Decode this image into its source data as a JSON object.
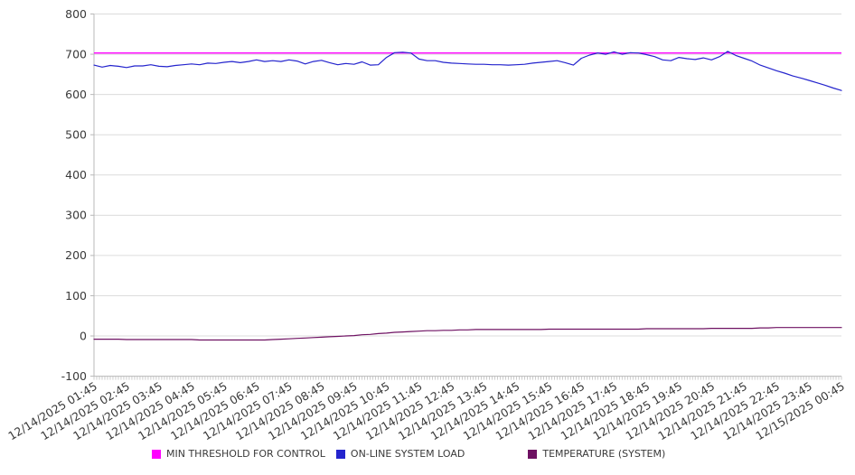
{
  "colors": {
    "background": "#ffffff",
    "grid": "#dcdcdc",
    "axis": "#b8b8b8",
    "tick_label": "#3a3a3a",
    "threshold": "#ff00ff",
    "load": "#2424cd",
    "temperature": "#6e1162"
  },
  "chart_data": {
    "type": "line",
    "title": "",
    "grid": "horizontal",
    "legend_position": "bottom",
    "x_axis": {
      "label_rotation_deg": -31,
      "minor_ticks": 277,
      "tick_labels": [
        "12/14/2025 01:45",
        "12/14/2025 02:45",
        "12/14/2025 03:45",
        "12/14/2025 04:45",
        "12/14/2025 05:45",
        "12/14/2025 06:45",
        "12/14/2025 07:45",
        "12/14/2025 08:45",
        "12/14/2025 09:45",
        "12/14/2025 10:45",
        "12/14/2025 11:45",
        "12/14/2025 12:45",
        "12/14/2025 13:45",
        "12/14/2025 14:45",
        "12/14/2025 15:45",
        "12/14/2025 16:45",
        "12/14/2025 17:45",
        "12/14/2025 18:45",
        "12/14/2025 19:45",
        "12/14/2025 20:45",
        "12/14/2025 21:45",
        "12/14/2025 22:45",
        "12/14/2025 23:45",
        "12/15/2025 00:45"
      ]
    },
    "y_axis": {
      "min": -100,
      "max": 800,
      "step": 100,
      "tick_labels": [
        "800",
        "700",
        "600",
        "500",
        "400",
        "300",
        "200",
        "100",
        "0",
        "-100"
      ]
    },
    "sample_interval_minutes": 15,
    "start_time": "12/14/2025 01:45",
    "end_time": "12/15/2025 00:45",
    "series": [
      {
        "name": "MIN THRESHOLD FOR CONTROL",
        "color": "#ff00ff",
        "render": "constant",
        "value": 703
      },
      {
        "name": "ON-LINE SYSTEM LOAD",
        "color": "#2424cd",
        "render": "line",
        "values": [
          673,
          668,
          672,
          670,
          667,
          671,
          671,
          674,
          670,
          669,
          672,
          674,
          676,
          674,
          678,
          677,
          680,
          682,
          679,
          682,
          686,
          682,
          684,
          682,
          686,
          683,
          676,
          682,
          685,
          679,
          674,
          677,
          675,
          681,
          673,
          674,
          692,
          704,
          705,
          703,
          688,
          684,
          684,
          680,
          678,
          677,
          676,
          675,
          675,
          674,
          674,
          673,
          674,
          675,
          678,
          680,
          682,
          684,
          679,
          673,
          690,
          698,
          703,
          700,
          706,
          700,
          704,
          703,
          699,
          694,
          686,
          684,
          692,
          689,
          687,
          691,
          686,
          694,
          707,
          697,
          690,
          683,
          673,
          666,
          659,
          653,
          646,
          641,
          635,
          629,
          623,
          616,
          610
        ]
      },
      {
        "name": "TEMPERATURE (SYSTEM)",
        "color": "#6e1162",
        "render": "line",
        "values": [
          -8,
          -8,
          -8,
          -8,
          -9,
          -9,
          -9,
          -9,
          -9,
          -9,
          -9,
          -9,
          -9,
          -10,
          -10,
          -10,
          -10,
          -10,
          -10,
          -10,
          -10,
          -10,
          -9,
          -8,
          -7,
          -6,
          -5,
          -4,
          -3,
          -2,
          -1,
          0,
          1,
          3,
          4,
          6,
          7,
          9,
          10,
          11,
          12,
          13,
          13,
          14,
          14,
          15,
          15,
          16,
          16,
          16,
          16,
          16,
          16,
          16,
          16,
          16,
          17,
          17,
          17,
          17,
          17,
          17,
          17,
          17,
          17,
          17,
          17,
          17,
          18,
          18,
          18,
          18,
          18,
          18,
          18,
          18,
          19,
          19,
          19,
          19,
          19,
          19,
          20,
          20,
          21,
          21,
          21,
          21,
          21,
          21,
          21,
          21,
          21
        ]
      }
    ]
  }
}
